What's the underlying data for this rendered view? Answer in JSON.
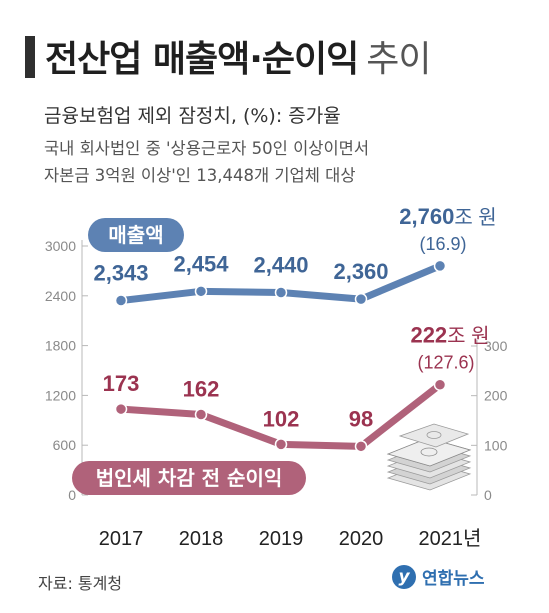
{
  "header": {
    "title": "전산업 매출액·순이익",
    "title_suffix": "추이",
    "subtitle": "금융보험업 제외 잠정치, (%): 증가율",
    "note_line1": "국내 회사법인 중 '상용근로자 50인 이상이면서",
    "note_line2": "자본금 3억원 이상'인 13,448개 기업체 대상"
  },
  "footer": {
    "source": "자료: 통계청",
    "logo_mark": "y",
    "logo_text": "연합뉴스"
  },
  "colors": {
    "sales": "#5d82b3",
    "sales_text": "#3f6596",
    "profit": "#b0627a",
    "profit_text": "#9b3350",
    "axis": "#b8b8b8",
    "grid": "#d9d9d9"
  },
  "chart_data": {
    "type": "line",
    "categories": [
      "2017",
      "2018",
      "2019",
      "2020",
      "2021년"
    ],
    "series": [
      {
        "name": "매출액",
        "axis": "left",
        "values": [
          2343,
          2454,
          2440,
          2360,
          2760
        ],
        "labels": [
          "2,343",
          "2,454",
          "2,440",
          "2,360",
          "2,760"
        ],
        "last_label_unit": "조 원",
        "growth_label": "(16.9)"
      },
      {
        "name": "법인세 차감 전 순이익",
        "axis": "right",
        "values": [
          173,
          162,
          102,
          98,
          222
        ],
        "labels": [
          "173",
          "162",
          "102",
          "98",
          "222"
        ],
        "last_label_unit": "조 원",
        "growth_label": "(127.6)"
      }
    ],
    "left_axis": {
      "ylim": [
        0,
        3000
      ],
      "ticks": [
        0,
        600,
        1200,
        1800,
        2400,
        3000
      ]
    },
    "right_axis": {
      "ylim": [
        0,
        300
      ],
      "ticks": [
        0,
        100,
        200,
        300
      ]
    },
    "grid": false
  }
}
